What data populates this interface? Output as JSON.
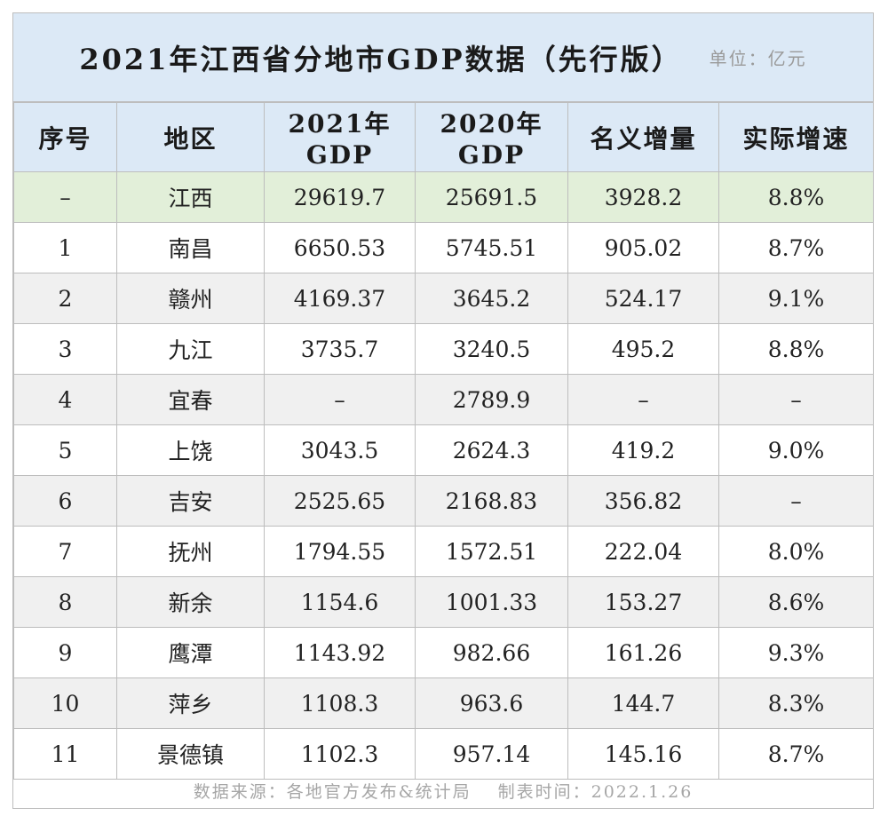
{
  "title": "2021年江西省分地市GDP数据（先行版）",
  "unit": "单位：亿元",
  "headers": [
    "序号",
    "地区",
    "2021年GDP",
    "2020年GDP",
    "名义增量",
    "实际增速"
  ],
  "rows": [
    [
      "–",
      "江西",
      "29619.7",
      "25691.5",
      "3928.2",
      "8.8%"
    ],
    [
      "1",
      "南昌",
      "6650.53",
      "5745.51",
      "905.02",
      "8.7%"
    ],
    [
      "2",
      "赣州",
      "4169.37",
      "3645.2",
      "524.17",
      "9.1%"
    ],
    [
      "3",
      "九江",
      "3735.7",
      "3240.5",
      "495.2",
      "8.8%"
    ],
    [
      "4",
      "宜春",
      "–",
      "2789.9",
      "–",
      "–"
    ],
    [
      "5",
      "上饶",
      "3043.5",
      "2624.3",
      "419.2",
      "9.0%"
    ],
    [
      "6",
      "吉安",
      "2525.65",
      "2168.83",
      "356.82",
      "–"
    ],
    [
      "7",
      "抚州",
      "1794.55",
      "1572.51",
      "222.04",
      "8.0%"
    ],
    [
      "8",
      "新余",
      "1154.6",
      "1001.33",
      "153.27",
      "8.6%"
    ],
    [
      "9",
      "鹰潭",
      "1143.92",
      "982.66",
      "161.26",
      "9.3%"
    ],
    [
      "10",
      "萍乡",
      "1108.3",
      "963.6",
      "144.7",
      "8.3%"
    ],
    [
      "11",
      "景德镇",
      "1102.3",
      "957.14",
      "145.16",
      "8.7%"
    ]
  ],
  "footer": {
    "source": "数据来源：各地官方发布&统计局",
    "date": "制表时间：2022.1.26"
  },
  "colors": {
    "header_bg": "#dce9f6",
    "total_row_bg": "#e2efd9",
    "alt_row_bg": "#f0f0f0",
    "border": "#bdbdbd"
  }
}
